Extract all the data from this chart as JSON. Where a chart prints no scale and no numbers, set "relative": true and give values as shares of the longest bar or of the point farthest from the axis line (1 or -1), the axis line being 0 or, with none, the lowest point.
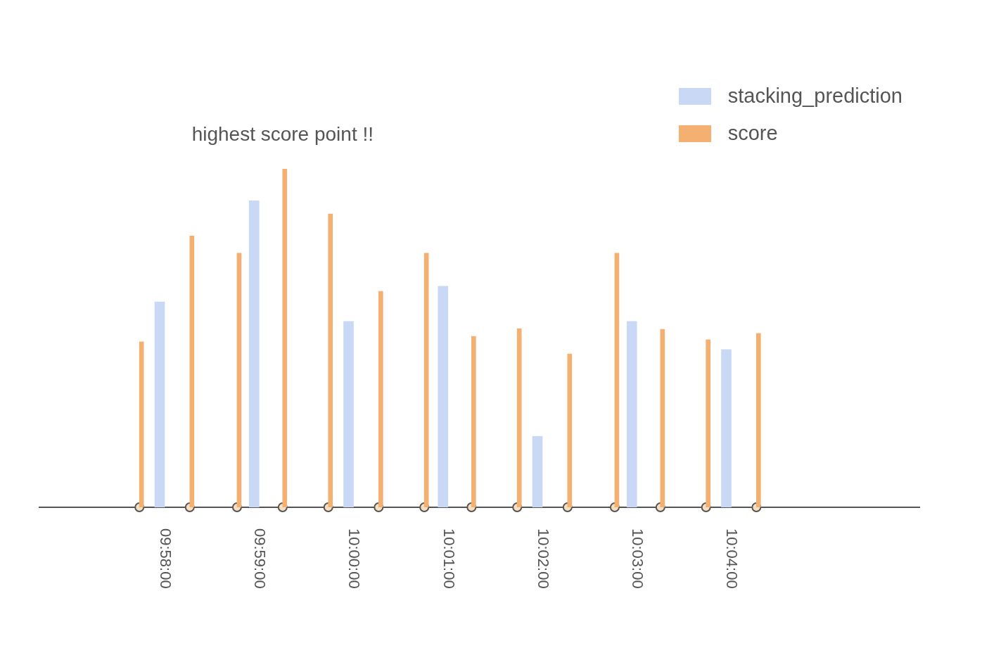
{
  "chart_data": {
    "type": "bar",
    "relative": true,
    "xlim": [
      9.944444,
      10.1
    ],
    "xticks": [
      {
        "value": 9.966667,
        "label": "09:58:00"
      },
      {
        "value": 9.983333,
        "label": "09:59:00"
      },
      {
        "value": 10,
        "label": "10:00:00"
      },
      {
        "value": 10.016667,
        "label": "10:01:00"
      },
      {
        "value": 10.033333,
        "label": "10:02:00"
      },
      {
        "value": 10.05,
        "label": "10:03:00"
      },
      {
        "value": 10.066667,
        "label": "10:04:00"
      }
    ],
    "series": [
      {
        "name": "stacking_prediction",
        "color": "#c9d9f5",
        "x": [
          9.966667,
          9.983333,
          10,
          10.016667,
          10.033333,
          10.05,
          10.066667
        ],
        "values": [
          0.607,
          0.906,
          0.549,
          0.653,
          0.21,
          0.549,
          0.466
        ]
      },
      {
        "name": "score",
        "color": "#f4b070",
        "x": [
          9.962222,
          9.971111,
          9.979444,
          9.9875,
          9.995556,
          10.004444,
          10.0125,
          10.020833,
          10.028889,
          10.037778,
          10.046111,
          10.054167,
          10.062222,
          10.071111
        ],
        "values": [
          0.489,
          0.802,
          0.751,
          1,
          0.867,
          0.638,
          0.751,
          0.505,
          0.528,
          0.453,
          0.751,
          0.526,
          0.495,
          0.514
        ]
      },
      {
        "type": "scatter",
        "color": "#f5dfc0",
        "marker": "circle",
        "x": [
          9.962222,
          9.971111,
          9.979444,
          9.9875,
          9.995556,
          10.004444,
          10.0125,
          10.020833,
          10.028889,
          10.037778,
          10.046111,
          10.054167,
          10.062222,
          10.071111
        ],
        "values": [
          0,
          0,
          0,
          0,
          0,
          0,
          0,
          0,
          0,
          0,
          0,
          0,
          0,
          0
        ]
      }
    ],
    "annotations": [
      {
        "text": "highest score point !!",
        "x": 9.9875,
        "y": 1
      }
    ],
    "legend": "top right",
    "grid": false
  }
}
